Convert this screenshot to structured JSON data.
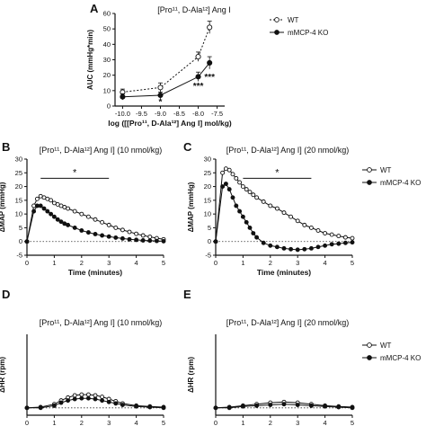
{
  "figure": {
    "panel_letters": [
      "A",
      "B",
      "C",
      "D",
      "E"
    ]
  },
  "chart_data": [
    {
      "panel": "A",
      "type": "line",
      "title": "[Pro¹¹, D-Ala¹²] Ang I",
      "xlabel": "log ([[Pro¹¹, D-Ala¹²] Ang I] mol/kg)",
      "ylabel": "AUC (mmHg*min)",
      "xlim": [
        -10.2,
        -7.3
      ],
      "ylim": [
        0,
        60
      ],
      "x_ticks": [
        "-10.0",
        "-9.5",
        "-9.0",
        "-8.5",
        "-8.0",
        "-7.5"
      ],
      "x_tick_values": [
        -10.0,
        -9.5,
        -9.0,
        -8.5,
        -8.0,
        -7.5
      ],
      "y_ticks": [
        "0",
        "10",
        "20",
        "30",
        "40",
        "50",
        "60"
      ],
      "y_tick_values": [
        0,
        10,
        20,
        30,
        40,
        50,
        60
      ],
      "x": [
        -10.0,
        -9.0,
        -8.0,
        -7.7
      ],
      "series": [
        {
          "name": "WT",
          "style": "dashed",
          "marker": "open",
          "values": [
            9,
            12,
            32,
            51
          ],
          "errors": [
            2,
            3,
            3,
            4
          ]
        },
        {
          "name": "mMCP-4 KO",
          "style": "solid",
          "marker": "filled",
          "values": [
            6,
            7,
            19,
            28
          ],
          "errors": [
            2,
            2,
            3,
            4
          ]
        }
      ],
      "annotations": [
        {
          "text": "*",
          "x": -9.0,
          "y": 1
        },
        {
          "text": "***",
          "x": -8.0,
          "y": 11
        },
        {
          "text": "***",
          "x": -7.7,
          "y": 17
        }
      ]
    },
    {
      "panel": "B",
      "type": "line",
      "title": "[Pro¹¹, D-Ala¹²] Ang I] (10 nmol/kg)",
      "xlabel": "Time (minutes)",
      "ylabel": "ΔMAP (mmHg)",
      "xlim": [
        0,
        5
      ],
      "ylim": [
        -5,
        30
      ],
      "x_ticks": [
        "0",
        "1",
        "2",
        "3",
        "4",
        "5"
      ],
      "y_ticks": [
        "-5",
        "0",
        "5",
        "10",
        "15",
        "20",
        "25",
        "30"
      ],
      "baseline_y": 0,
      "significance": {
        "text": "*",
        "from": 0.5,
        "to": 3.0,
        "y": 23
      },
      "series": [
        {
          "name": "WT",
          "marker": "open",
          "x": [
            0,
            0.25,
            0.375,
            0.5,
            0.625,
            0.75,
            0.875,
            1.0,
            1.125,
            1.25,
            1.375,
            1.5,
            1.75,
            2.0,
            2.25,
            2.5,
            2.75,
            3.0,
            3.25,
            3.5,
            3.75,
            4.0,
            4.25,
            4.5,
            4.75,
            5.0
          ],
          "values": [
            0,
            13,
            15.5,
            16.5,
            16,
            15.5,
            15,
            14,
            13.5,
            13,
            12.5,
            12,
            11,
            10,
            9,
            8,
            7,
            6,
            5,
            4.2,
            3.5,
            2.8,
            2.2,
            1.7,
            1.2,
            0.8
          ]
        },
        {
          "name": "mMCP-4 KO",
          "marker": "filled",
          "x": [
            0,
            0.25,
            0.375,
            0.5,
            0.625,
            0.75,
            0.875,
            1.0,
            1.125,
            1.25,
            1.375,
            1.5,
            1.75,
            2.0,
            2.25,
            2.5,
            2.75,
            3.0,
            3.25,
            3.5,
            3.75,
            4.0,
            4.25,
            4.5,
            4.75,
            5.0
          ],
          "values": [
            0,
            11,
            13,
            13,
            12,
            11,
            10,
            9,
            8,
            7.2,
            6.5,
            6,
            5,
            4,
            3.3,
            2.7,
            2.2,
            1.8,
            1.4,
            1.1,
            0.8,
            0.6,
            0.4,
            0.3,
            0.2,
            0.1
          ]
        }
      ]
    },
    {
      "panel": "C",
      "type": "line",
      "title": "[Pro¹¹, D-Ala¹²] Ang I] (20 nmol/kg)",
      "xlabel": "Time (minutes)",
      "ylabel": "ΔMAP (mmHg)",
      "xlim": [
        0,
        5
      ],
      "ylim": [
        -5,
        30
      ],
      "x_ticks": [
        "0",
        "1",
        "2",
        "3",
        "4",
        "5"
      ],
      "y_ticks": [
        "-5",
        "0",
        "5",
        "10",
        "15",
        "20",
        "25",
        "30"
      ],
      "baseline_y": 0,
      "significance": {
        "text": "*",
        "from": 1.0,
        "to": 3.5,
        "y": 23
      },
      "legend": {
        "position": "top-right",
        "entries": [
          "WT",
          "mMCP-4 KO"
        ]
      },
      "series": [
        {
          "name": "WT",
          "marker": "open",
          "x": [
            0,
            0.25,
            0.375,
            0.5,
            0.625,
            0.75,
            0.875,
            1.0,
            1.125,
            1.25,
            1.375,
            1.5,
            1.75,
            2.0,
            2.25,
            2.5,
            2.75,
            3.0,
            3.25,
            3.5,
            3.75,
            4.0,
            4.25,
            4.5,
            4.75,
            5.0
          ],
          "values": [
            0,
            25,
            26.5,
            26,
            24.5,
            23,
            21.5,
            20,
            19,
            18,
            17,
            16,
            14.5,
            13,
            12,
            10.5,
            9,
            7.5,
            6,
            5,
            4,
            3,
            2.5,
            2,
            1.5,
            1.2
          ]
        },
        {
          "name": "mMCP-4 KO",
          "marker": "filled",
          "x": [
            0,
            0.25,
            0.375,
            0.5,
            0.625,
            0.75,
            0.875,
            1.0,
            1.125,
            1.25,
            1.375,
            1.5,
            1.75,
            2.0,
            2.25,
            2.5,
            2.75,
            3.0,
            3.25,
            3.5,
            3.75,
            4.0,
            4.25,
            4.5,
            4.75,
            5.0
          ],
          "values": [
            0,
            20,
            21,
            19,
            16,
            13,
            11,
            9,
            7,
            5,
            3,
            1.5,
            -0.5,
            -1.5,
            -2,
            -2.5,
            -2.8,
            -3,
            -2.8,
            -2.5,
            -2,
            -1.5,
            -1,
            -0.8,
            -0.5,
            -0.3
          ]
        }
      ]
    },
    {
      "panel": "D",
      "type": "line",
      "title": "[Pro¹¹, D-Ala¹²] Ang I] (10 nmol/kg)",
      "xlabel": "Time (minutes)",
      "ylabel": "ΔHR (rpm)",
      "xlim": [
        0,
        5
      ],
      "ylim": [
        -10,
        100
      ],
      "x_ticks": [
        "0",
        "1",
        "2",
        "3",
        "4",
        "5"
      ],
      "y_ticks": [],
      "baseline_y": 0,
      "series": [
        {
          "name": "WT",
          "marker": "open",
          "x": [
            0,
            0.5,
            1.0,
            1.25,
            1.5,
            1.75,
            2.0,
            2.25,
            2.5,
            2.75,
            3.0,
            3.25,
            3.5,
            4.0,
            4.5,
            5.0
          ],
          "values": [
            0,
            1,
            5,
            10,
            14,
            17,
            18,
            18,
            17,
            15,
            12,
            9,
            6,
            3,
            2,
            1
          ]
        },
        {
          "name": "mMCP-4 KO",
          "marker": "filled",
          "x": [
            0,
            0.5,
            1.0,
            1.25,
            1.5,
            1.75,
            2.0,
            2.25,
            2.5,
            2.75,
            3.0,
            3.25,
            3.5,
            4.0,
            4.5,
            5.0
          ],
          "values": [
            0,
            0,
            3,
            7,
            10,
            12,
            13,
            13,
            12,
            10,
            8,
            6,
            4,
            2,
            1,
            0
          ]
        }
      ]
    },
    {
      "panel": "E",
      "type": "line",
      "title": "[Pro¹¹, D-Ala¹²] Ang I] (20 nmol/kg)",
      "xlabel": "Time (minutes)",
      "ylabel": "ΔHR (rpm)",
      "xlim": [
        0,
        5
      ],
      "ylim": [
        -10,
        100
      ],
      "x_ticks": [
        "0",
        "1",
        "2",
        "3",
        "4",
        "5"
      ],
      "y_ticks": [],
      "baseline_y": 0,
      "legend": {
        "position": "top-right",
        "entries": [
          "WT",
          "mMCP-4 KO"
        ]
      },
      "series": [
        {
          "name": "WT",
          "marker": "open",
          "x": [
            0,
            0.5,
            1.0,
            1.5,
            2.0,
            2.5,
            3.0,
            3.5,
            4.0,
            4.5,
            5.0
          ],
          "values": [
            0,
            1,
            3,
            5,
            7,
            8,
            7,
            5,
            3,
            2,
            1
          ]
        },
        {
          "name": "mMCP-4 KO",
          "marker": "filled",
          "x": [
            0,
            0.5,
            1.0,
            1.5,
            2.0,
            2.5,
            3.0,
            3.5,
            4.0,
            4.5,
            5.0
          ],
          "values": [
            0,
            0,
            2,
            3,
            4,
            5,
            4,
            3,
            2,
            1,
            0
          ]
        }
      ]
    }
  ]
}
